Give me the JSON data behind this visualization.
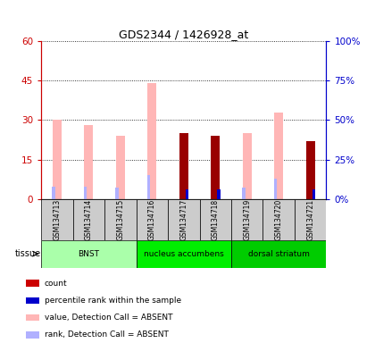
{
  "title": "GDS2344 / 1426928_at",
  "samples": [
    "GSM134713",
    "GSM134714",
    "GSM134715",
    "GSM134716",
    "GSM134717",
    "GSM134718",
    "GSM134719",
    "GSM134720",
    "GSM134721"
  ],
  "absent_value": [
    30,
    28,
    24,
    44,
    0,
    0,
    25,
    33,
    0
  ],
  "absent_rank": [
    8,
    8,
    7,
    15,
    0,
    0,
    7,
    13,
    0
  ],
  "present_count": [
    0,
    0,
    0,
    0,
    25,
    24,
    0,
    0,
    22
  ],
  "present_rank": [
    0,
    0,
    0,
    0,
    6,
    6,
    0,
    0,
    6
  ],
  "tissues": [
    {
      "label": "BNST",
      "start": 0,
      "end": 3,
      "color": "#aaffaa"
    },
    {
      "label": "nucleus accumbens",
      "start": 3,
      "end": 6,
      "color": "#00ee00"
    },
    {
      "label": "dorsal striatum",
      "start": 6,
      "end": 9,
      "color": "#00cc00"
    }
  ],
  "ylim_left": [
    0,
    60
  ],
  "ylim_right": [
    0,
    100
  ],
  "yticks_left": [
    0,
    15,
    30,
    45,
    60
  ],
  "yticks_right": [
    0,
    25,
    50,
    75,
    100
  ],
  "ytick_labels_left": [
    "0",
    "15",
    "30",
    "45",
    "60"
  ],
  "ytick_labels_right": [
    "0%",
    "25%",
    "50%",
    "75%",
    "100%"
  ],
  "left_axis_color": "#cc0000",
  "right_axis_color": "#0000cc",
  "color_absent_value": "#ffb6b6",
  "color_absent_rank": "#b0b0ff",
  "color_present_count": "#990000",
  "color_present_rank_blue": "#0000cc",
  "tissue_label": "tissue",
  "legend_items": [
    {
      "color": "#cc0000",
      "label": "count"
    },
    {
      "color": "#0000cc",
      "label": "percentile rank within the sample"
    },
    {
      "color": "#ffb6b6",
      "label": "value, Detection Call = ABSENT"
    },
    {
      "color": "#b0b0ff",
      "label": "rank, Detection Call = ABSENT"
    }
  ]
}
